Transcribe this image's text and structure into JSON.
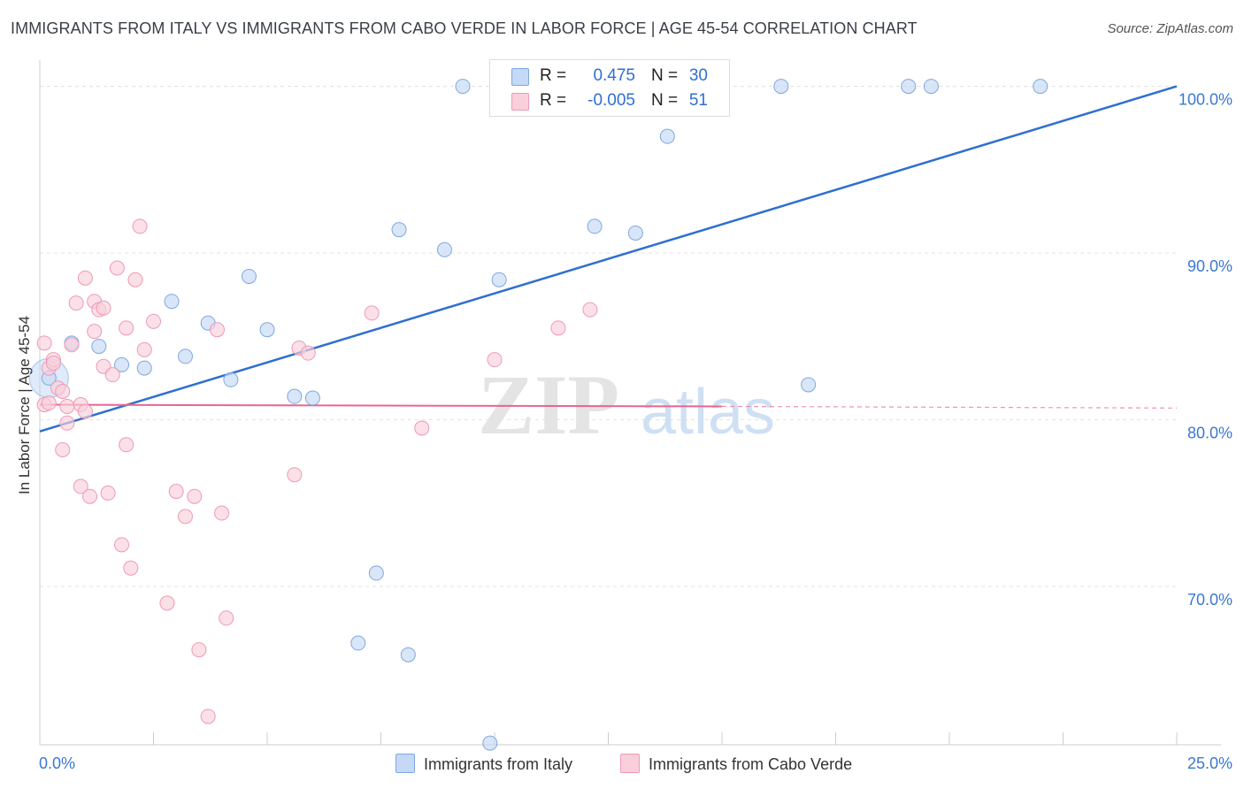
{
  "header": {
    "title": "IMMIGRANTS FROM ITALY VS IMMIGRANTS FROM CABO VERDE IN LABOR FORCE | AGE 45-54 CORRELATION CHART",
    "source": "Source: ZipAtlas.com"
  },
  "watermark": {
    "zip": "ZIP",
    "atlas": "atlas"
  },
  "colors": {
    "italy_fill": "#c5d8f5",
    "italy_stroke": "#7ea8e0",
    "italy_line": "#2f6fd0",
    "cabo_fill": "#f9cfdc",
    "cabo_stroke": "#ee9ab5",
    "cabo_line": "#e8668f",
    "tick_label": "#3a78d1",
    "grid": "#e3e3e3"
  },
  "legend": {
    "rows": [
      {
        "r_label": "R =",
        "r_value": "0.475",
        "n_label": "N =",
        "n_value": "30"
      },
      {
        "r_label": "R =",
        "r_value": "-0.005",
        "n_label": "N =",
        "n_value": "51"
      }
    ]
  },
  "chart_data": {
    "type": "scatter",
    "title": "IMMIGRANTS FROM ITALY VS IMMIGRANTS FROM CABO VERDE IN LABOR FORCE | AGE 45-54 CORRELATION CHART",
    "xlabel": "",
    "ylabel": "In Labor Force | Age 45-54",
    "xlim": [
      0,
      25
    ],
    "ylim": [
      60.5,
      101.2
    ],
    "x_tick_labels": [
      "0.0%",
      "25.0%"
    ],
    "y_ticks": [
      70,
      80,
      90,
      100
    ],
    "y_tick_labels": [
      "70.0%",
      "80.0%",
      "90.0%",
      "100.0%"
    ],
    "grid": true,
    "series": [
      {
        "name": "Immigrants from Italy",
        "points": [
          [
            0.2,
            82.5
          ],
          [
            0.7,
            84.6
          ],
          [
            1.3,
            84.4
          ],
          [
            1.8,
            83.3
          ],
          [
            2.3,
            83.1
          ],
          [
            2.9,
            87.1
          ],
          [
            3.2,
            83.8
          ],
          [
            3.7,
            85.8
          ],
          [
            4.2,
            82.4
          ],
          [
            4.6,
            88.6
          ],
          [
            5.0,
            85.4
          ],
          [
            5.6,
            81.4
          ],
          [
            6.0,
            81.3
          ],
          [
            7.0,
            66.6
          ],
          [
            7.4,
            70.8
          ],
          [
            7.9,
            91.4
          ],
          [
            8.1,
            65.9
          ],
          [
            8.9,
            90.2
          ],
          [
            9.3,
            100.0
          ],
          [
            9.9,
            60.6
          ],
          [
            10.1,
            88.4
          ],
          [
            11.2,
            100.0
          ],
          [
            12.2,
            91.6
          ],
          [
            13.1,
            91.2
          ],
          [
            13.8,
            97.0
          ],
          [
            16.3,
            100.0
          ],
          [
            16.9,
            82.1
          ],
          [
            19.1,
            100.0
          ],
          [
            19.6,
            100.0
          ],
          [
            22.0,
            100.0
          ]
        ],
        "trend": {
          "x": [
            0,
            25
          ],
          "y": [
            79.3,
            100.0
          ]
        }
      },
      {
        "name": "Immigrants from Cabo Verde",
        "points": [
          [
            0.1,
            84.6
          ],
          [
            0.1,
            80.9
          ],
          [
            0.2,
            83.1
          ],
          [
            0.3,
            83.6
          ],
          [
            0.3,
            83.4
          ],
          [
            0.4,
            81.9
          ],
          [
            0.5,
            81.7
          ],
          [
            0.5,
            78.2
          ],
          [
            0.6,
            80.8
          ],
          [
            0.6,
            79.8
          ],
          [
            0.7,
            84.5
          ],
          [
            0.8,
            87.0
          ],
          [
            0.9,
            80.9
          ],
          [
            0.9,
            76.0
          ],
          [
            1.0,
            88.5
          ],
          [
            1.0,
            80.5
          ],
          [
            1.1,
            75.4
          ],
          [
            1.2,
            87.1
          ],
          [
            1.2,
            85.3
          ],
          [
            1.3,
            86.6
          ],
          [
            1.4,
            86.7
          ],
          [
            1.4,
            83.2
          ],
          [
            1.5,
            75.6
          ],
          [
            1.6,
            82.7
          ],
          [
            1.7,
            89.1
          ],
          [
            1.8,
            72.5
          ],
          [
            1.9,
            85.5
          ],
          [
            1.9,
            78.5
          ],
          [
            2.0,
            71.1
          ],
          [
            2.1,
            88.4
          ],
          [
            2.2,
            91.6
          ],
          [
            2.3,
            84.2
          ],
          [
            2.5,
            85.9
          ],
          [
            2.8,
            69.0
          ],
          [
            3.0,
            75.7
          ],
          [
            3.2,
            74.2
          ],
          [
            3.4,
            75.4
          ],
          [
            3.5,
            66.2
          ],
          [
            3.7,
            62.2
          ],
          [
            3.9,
            85.4
          ],
          [
            4.0,
            74.4
          ],
          [
            4.1,
            68.1
          ],
          [
            5.6,
            76.7
          ],
          [
            5.7,
            84.3
          ],
          [
            5.9,
            84.0
          ],
          [
            7.3,
            86.4
          ],
          [
            8.4,
            79.5
          ],
          [
            10.0,
            83.6
          ],
          [
            11.4,
            85.5
          ],
          [
            12.1,
            86.6
          ],
          [
            0.2,
            81.0
          ]
        ],
        "trend": {
          "x": [
            0,
            15.0
          ],
          "y": [
            80.9,
            80.8
          ],
          "dashed_to": [
            25,
            80.7
          ]
        }
      }
    ]
  },
  "bottom_legend": {
    "italy_label": "Immigrants from Italy",
    "cabo_label": "Immigrants from Cabo Verde"
  }
}
